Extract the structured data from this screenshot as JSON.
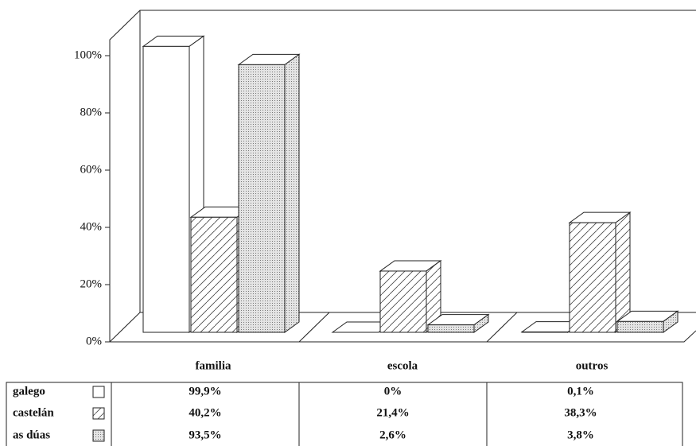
{
  "chart_data": {
    "type": "bar3d",
    "categories": [
      "familia",
      "escola",
      "outros"
    ],
    "series": [
      {
        "name": "galego",
        "color": "#ffffff",
        "pattern": "none",
        "values": [
          99.9,
          0,
          0.1
        ],
        "value_labels": [
          "99,9%",
          "0%",
          "0,1%"
        ]
      },
      {
        "name": "castelán",
        "color": "#ffffff",
        "pattern": "hatch",
        "values": [
          40.2,
          21.4,
          38.3
        ],
        "value_labels": [
          "40,2%",
          "21,4%",
          "38,3%"
        ]
      },
      {
        "name": "as dúas",
        "color": "#d8d8d8",
        "pattern": "dots",
        "values": [
          93.5,
          2.6,
          3.8
        ],
        "value_labels": [
          "93,5%",
          "2,6%",
          "3,8%"
        ]
      }
    ],
    "ylim": [
      0,
      100
    ],
    "yticks": [
      {
        "value": 0,
        "label": "0%"
      },
      {
        "value": 20,
        "label": "20%"
      },
      {
        "value": 40,
        "label": "40%"
      },
      {
        "value": 60,
        "label": "60%"
      },
      {
        "value": 80,
        "label": "80%"
      },
      {
        "value": 100,
        "label": "100%"
      }
    ]
  }
}
